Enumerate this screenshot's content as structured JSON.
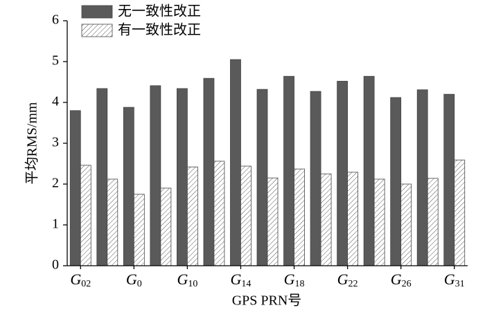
{
  "chart_data": {
    "type": "bar",
    "x_label": "GPS PRN号",
    "y_label": "平均RMS/mm",
    "categories": [
      "G02",
      null,
      "G0",
      null,
      "G10",
      null,
      "G14",
      null,
      "G18",
      null,
      "G22",
      null,
      "G26",
      null,
      "G31"
    ],
    "series": [
      {
        "name": "无一致性改正",
        "color": "#5a5a5a",
        "pattern": "solid",
        "values": [
          3.8,
          4.34,
          3.88,
          4.41,
          4.34,
          4.59,
          5.05,
          4.32,
          4.64,
          4.27,
          4.52,
          4.64,
          4.12,
          4.31,
          4.2
        ]
      },
      {
        "name": "有一致性改正",
        "color": "#555555",
        "pattern": "hatch",
        "values": [
          2.46,
          2.12,
          1.75,
          1.9,
          2.42,
          2.56,
          2.44,
          2.15,
          2.37,
          2.25,
          2.29,
          2.12,
          2.0,
          2.14,
          2.59
        ]
      }
    ],
    "ylim": [
      0,
      6
    ],
    "yticks": [
      0,
      1,
      2,
      3,
      4,
      5,
      6
    ],
    "legend": "upper left"
  }
}
